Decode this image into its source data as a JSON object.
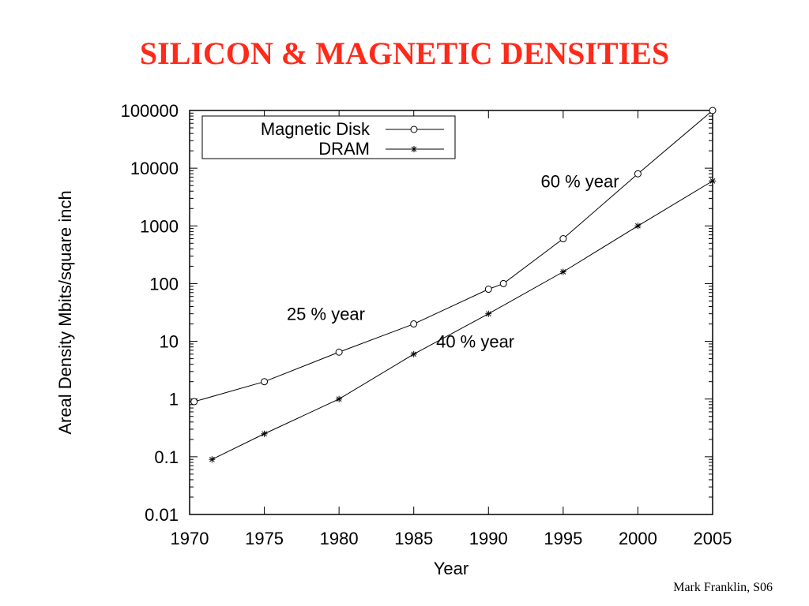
{
  "slide": {
    "title": "SILICON & MAGNETIC DENSITIES",
    "footer": "Mark Franklin, S06"
  },
  "chart_data": {
    "type": "line",
    "xlabel": "Year",
    "ylabel": "Areal Density Mbits/square inch",
    "y_scale": "log",
    "xlim": [
      1970,
      2005
    ],
    "ylim": [
      0.01,
      100000
    ],
    "x_ticks": [
      "1970",
      "1975",
      "1980",
      "1985",
      "1990",
      "1995",
      "2000",
      "2005"
    ],
    "y_ticks": [
      "0.01",
      "0.1",
      "1",
      "10",
      "100",
      "1000",
      "10000",
      "100000"
    ],
    "grid": false,
    "legend_position": "top-left",
    "series": [
      {
        "name": "Magnetic Disk",
        "marker": "circle",
        "x": [
          1970.3,
          1975,
          1980,
          1985,
          1990,
          1991,
          1995,
          2000,
          2005
        ],
        "y": [
          0.9,
          2,
          6.5,
          20,
          80,
          100,
          600,
          8000,
          100000
        ]
      },
      {
        "name": "DRAM",
        "marker": "star",
        "x": [
          1971.5,
          1975,
          1980,
          1985,
          1990,
          1995,
          2000,
          2005
        ],
        "y": [
          0.09,
          0.25,
          1,
          6,
          30,
          160,
          1000,
          6000
        ]
      }
    ],
    "annotations": [
      {
        "text": "60 %  year",
        "x": 1993.5,
        "y": 6000
      },
      {
        "text": "25 %  year",
        "x": 1976.5,
        "y": 30
      },
      {
        "text": "40 %  year",
        "x": 1986.5,
        "y": 10
      }
    ]
  }
}
